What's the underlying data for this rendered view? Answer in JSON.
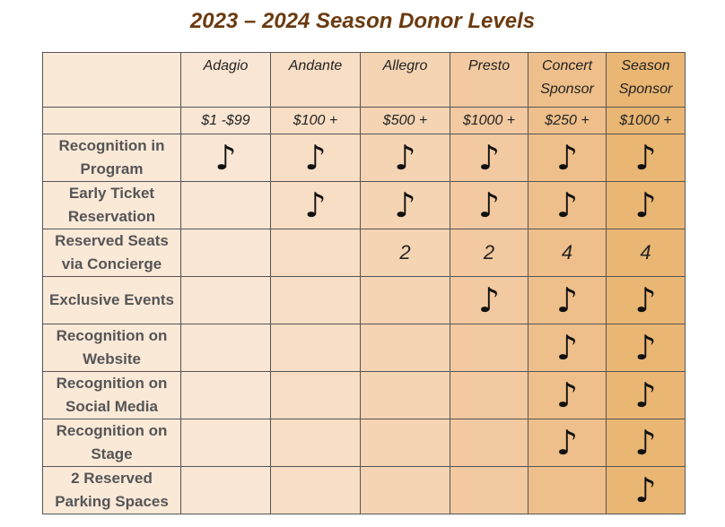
{
  "title": "2023 – 2024 Season Donor Levels",
  "columns": [
    {
      "name": "Adagio",
      "price": "$1 -$99"
    },
    {
      "name": "Andante",
      "price": "$100 +"
    },
    {
      "name": "Allegro",
      "price": "$500 +"
    },
    {
      "name": "Presto",
      "price": "$1000 +"
    },
    {
      "name": "Concert Sponsor",
      "price": "$250 +"
    },
    {
      "name": "Season Sponsor",
      "price": "$1000 +"
    }
  ],
  "rows": [
    {
      "label": "Recognition in Program",
      "cells": [
        "♪",
        "♪",
        "♪",
        "♪",
        "♪",
        "♪"
      ]
    },
    {
      "label": "Early Ticket Reservation",
      "cells": [
        null,
        "♪",
        "♪",
        "♪",
        "♪",
        "♪"
      ]
    },
    {
      "label": "Reserved Seats via Concierge",
      "cells": [
        null,
        null,
        2,
        2,
        4,
        4
      ]
    },
    {
      "label": "Exclusive Events",
      "cells": [
        null,
        null,
        null,
        "♪",
        "♪",
        "♪"
      ]
    },
    {
      "label": "Recognition on Website",
      "cells": [
        null,
        null,
        null,
        null,
        "♪",
        "♪"
      ]
    },
    {
      "label": "Recognition on Social Media",
      "cells": [
        null,
        null,
        null,
        null,
        "♪",
        "♪"
      ]
    },
    {
      "label": "Recognition on Stage",
      "cells": [
        null,
        null,
        null,
        null,
        "♪",
        "♪"
      ]
    },
    {
      "label": "2 Reserved Parking Spaces",
      "cells": [
        null,
        null,
        null,
        null,
        null,
        "♪"
      ]
    }
  ]
}
